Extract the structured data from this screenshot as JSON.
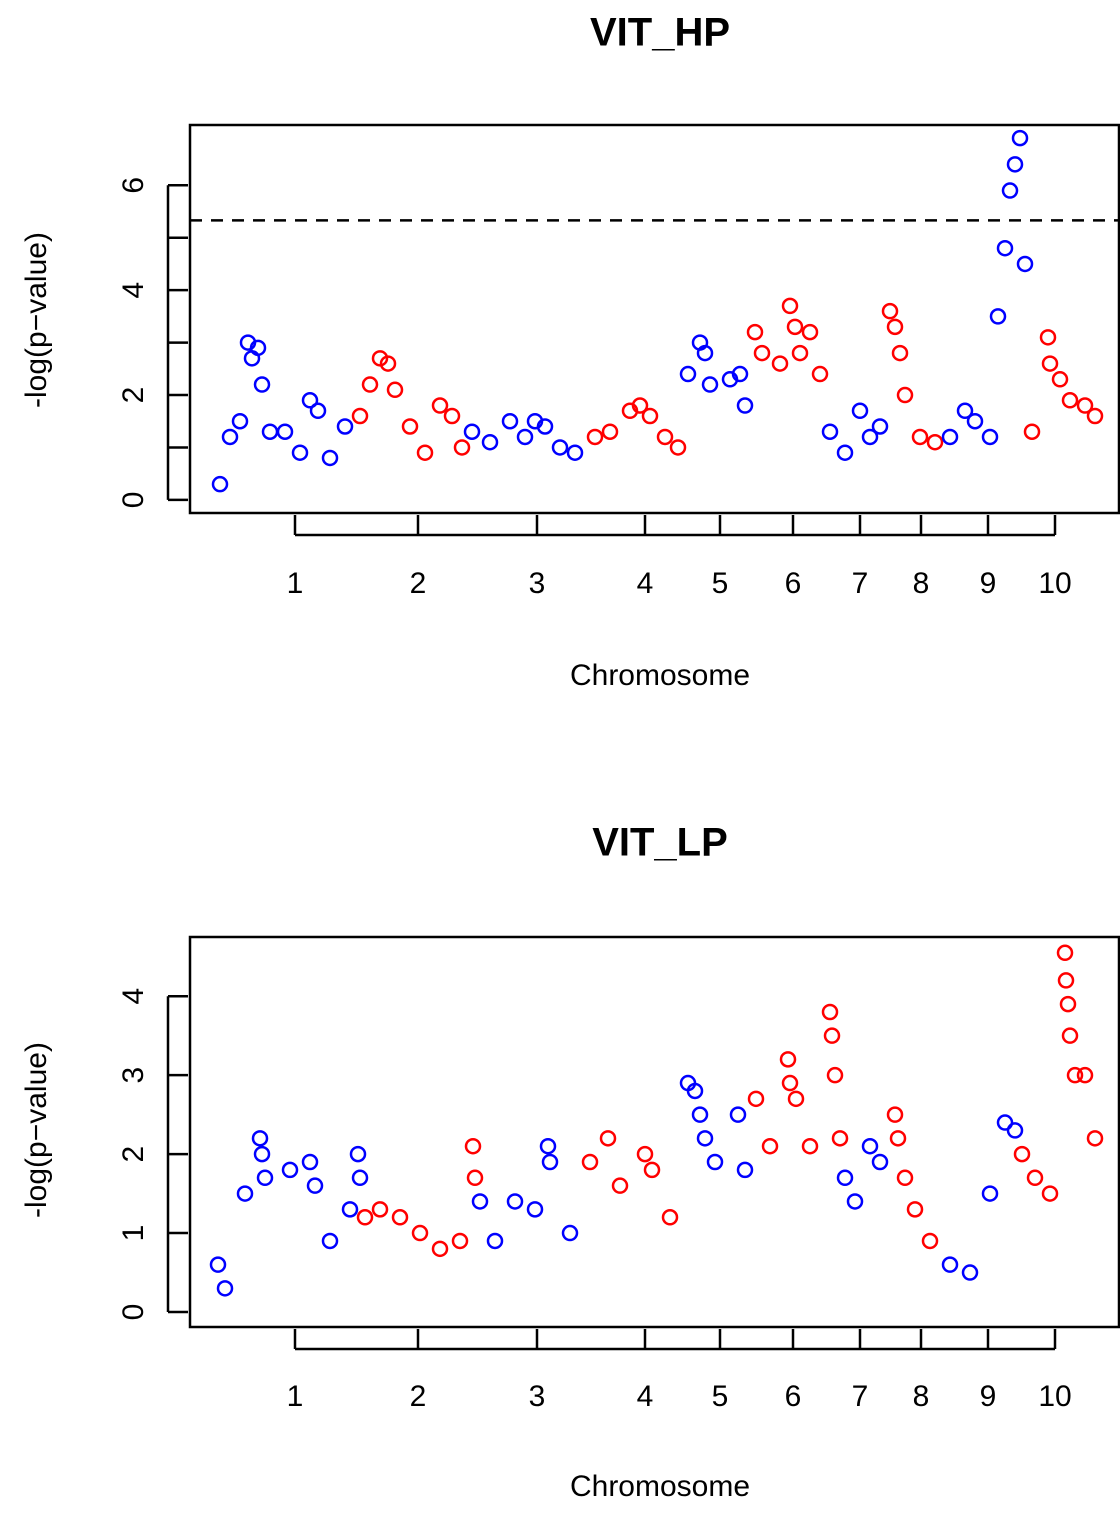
{
  "chart_data": [
    {
      "type": "scatter",
      "title": "VIT_HP",
      "xlabel": "Chromosome",
      "ylabel": "-log(p−value)",
      "xlim": [
        0,
        929
      ],
      "ylim": [
        -0.25,
        7.15
      ],
      "yticks": [
        0,
        2,
        4,
        6
      ],
      "yminor": [
        1,
        3,
        5
      ],
      "threshold": 5.33,
      "xticks": [
        {
          "value": 105,
          "label": "1"
        },
        {
          "value": 228,
          "label": "2"
        },
        {
          "value": 347,
          "label": "3"
        },
        {
          "value": 455,
          "label": "4"
        },
        {
          "value": 530,
          "label": "5"
        },
        {
          "value": 603,
          "label": "6"
        },
        {
          "value": 670,
          "label": "7"
        },
        {
          "value": 731,
          "label": "8"
        },
        {
          "value": 798,
          "label": "9"
        },
        {
          "value": 865,
          "label": "10"
        }
      ],
      "series": [
        {
          "color": "#0000ff",
          "x": [
            30,
            40,
            50,
            58,
            62,
            68,
            72,
            80,
            95,
            110,
            120,
            128,
            140,
            155
          ],
          "values": [
            0.3,
            1.2,
            1.5,
            3.0,
            2.7,
            2.9,
            2.2,
            1.3,
            1.3,
            0.9,
            1.9,
            1.7,
            0.8,
            1.4
          ]
        },
        {
          "color": "#ff0000",
          "x": [
            170,
            180,
            190,
            198,
            205,
            220,
            235,
            250,
            262,
            272
          ],
          "values": [
            1.6,
            2.2,
            2.7,
            2.6,
            2.1,
            1.4,
            0.9,
            1.8,
            1.6,
            1.0
          ]
        },
        {
          "color": "#0000ff",
          "x": [
            282,
            300,
            320,
            335,
            345,
            355,
            370,
            385
          ],
          "values": [
            1.3,
            1.1,
            1.5,
            1.2,
            1.5,
            1.4,
            1.0,
            0.9
          ]
        },
        {
          "color": "#ff0000",
          "x": [
            405,
            420,
            440,
            450,
            460,
            475,
            488
          ],
          "values": [
            1.2,
            1.3,
            1.7,
            1.8,
            1.6,
            1.2,
            1.0
          ]
        },
        {
          "color": "#0000ff",
          "x": [
            498,
            510,
            515,
            520,
            540,
            550,
            555
          ],
          "values": [
            2.4,
            3.0,
            2.8,
            2.2,
            2.3,
            2.4,
            1.8
          ]
        },
        {
          "color": "#ff0000",
          "x": [
            565,
            572,
            590,
            600,
            605,
            610,
            620,
            630
          ],
          "values": [
            3.2,
            2.8,
            2.6,
            3.7,
            3.3,
            2.8,
            3.2,
            2.4
          ]
        },
        {
          "color": "#0000ff",
          "x": [
            640,
            655,
            670,
            680,
            690
          ],
          "values": [
            1.3,
            0.9,
            1.7,
            1.2,
            1.4
          ]
        },
        {
          "color": "#ff0000",
          "x": [
            700,
            705,
            710,
            715,
            730,
            745
          ],
          "values": [
            3.6,
            3.3,
            2.8,
            2.0,
            1.2,
            1.1
          ]
        },
        {
          "color": "#0000ff",
          "x": [
            760,
            775,
            785,
            800,
            808,
            815,
            820,
            825,
            830,
            835
          ],
          "values": [
            1.2,
            1.7,
            1.5,
            1.2,
            3.5,
            4.8,
            5.9,
            6.4,
            6.9,
            4.5
          ]
        },
        {
          "color": "#ff0000",
          "x": [
            842,
            858,
            860,
            870,
            880,
            895,
            905
          ],
          "values": [
            1.3,
            3.1,
            2.6,
            2.3,
            1.9,
            1.8,
            1.6
          ]
        }
      ]
    },
    {
      "type": "scatter",
      "title": "VIT_LP",
      "xlabel": "Chromosome",
      "ylabel": "-log(p−value)",
      "xlim": [
        0,
        929
      ],
      "ylim": [
        -0.19,
        4.75
      ],
      "yticks": [
        0,
        1,
        2,
        3,
        4
      ],
      "xticks": [
        {
          "value": 105,
          "label": "1"
        },
        {
          "value": 228,
          "label": "2"
        },
        {
          "value": 347,
          "label": "3"
        },
        {
          "value": 455,
          "label": "4"
        },
        {
          "value": 530,
          "label": "5"
        },
        {
          "value": 603,
          "label": "6"
        },
        {
          "value": 670,
          "label": "7"
        },
        {
          "value": 731,
          "label": "8"
        },
        {
          "value": 798,
          "label": "9"
        },
        {
          "value": 865,
          "label": "10"
        }
      ],
      "series": [
        {
          "color": "#0000ff",
          "x": [
            28,
            35,
            55,
            70,
            72,
            75,
            100,
            120,
            125,
            140,
            160,
            168,
            170
          ],
          "values": [
            0.6,
            0.3,
            1.5,
            2.2,
            2.0,
            1.7,
            1.8,
            1.9,
            1.6,
            0.9,
            1.3,
            2.0,
            1.7
          ]
        },
        {
          "color": "#ff0000",
          "x": [
            175,
            190,
            210,
            230,
            250,
            270,
            283,
            285
          ],
          "values": [
            1.2,
            1.3,
            1.2,
            1.0,
            0.8,
            0.9,
            2.1,
            1.7
          ]
        },
        {
          "color": "#0000ff",
          "x": [
            290,
            305,
            325,
            345,
            358,
            360,
            380
          ],
          "values": [
            1.4,
            0.9,
            1.4,
            1.3,
            2.1,
            1.9,
            1.0
          ]
        },
        {
          "color": "#ff0000",
          "x": [
            400,
            418,
            430,
            455,
            462,
            480
          ],
          "values": [
            1.9,
            2.2,
            1.6,
            2.0,
            1.8,
            1.2
          ]
        },
        {
          "color": "#0000ff",
          "x": [
            498,
            505,
            510,
            515,
            525,
            548,
            555
          ],
          "values": [
            2.9,
            2.8,
            2.5,
            2.2,
            1.9,
            2.5,
            1.8
          ]
        },
        {
          "color": "#ff0000",
          "x": [
            566,
            580,
            598,
            600,
            606,
            620,
            640,
            642,
            645,
            650
          ],
          "values": [
            2.7,
            2.1,
            3.2,
            2.9,
            2.7,
            2.1,
            3.8,
            3.5,
            3.0,
            2.2
          ]
        },
        {
          "color": "#0000ff",
          "x": [
            655,
            665,
            680,
            690
          ],
          "values": [
            1.7,
            1.4,
            2.1,
            1.9
          ]
        },
        {
          "color": "#ff0000",
          "x": [
            705,
            708,
            715,
            725,
            740
          ],
          "values": [
            2.5,
            2.2,
            1.7,
            1.3,
            0.9
          ]
        },
        {
          "color": "#0000ff",
          "x": [
            760,
            780,
            800,
            815,
            825
          ],
          "values": [
            0.6,
            0.5,
            1.5,
            2.4,
            2.3
          ]
        },
        {
          "color": "#ff0000",
          "x": [
            832,
            845,
            860,
            875,
            876,
            878,
            880,
            885,
            895,
            905
          ],
          "values": [
            2.0,
            1.7,
            1.5,
            4.55,
            4.2,
            3.9,
            3.5,
            3.0,
            3.0,
            2.2
          ]
        }
      ]
    }
  ]
}
